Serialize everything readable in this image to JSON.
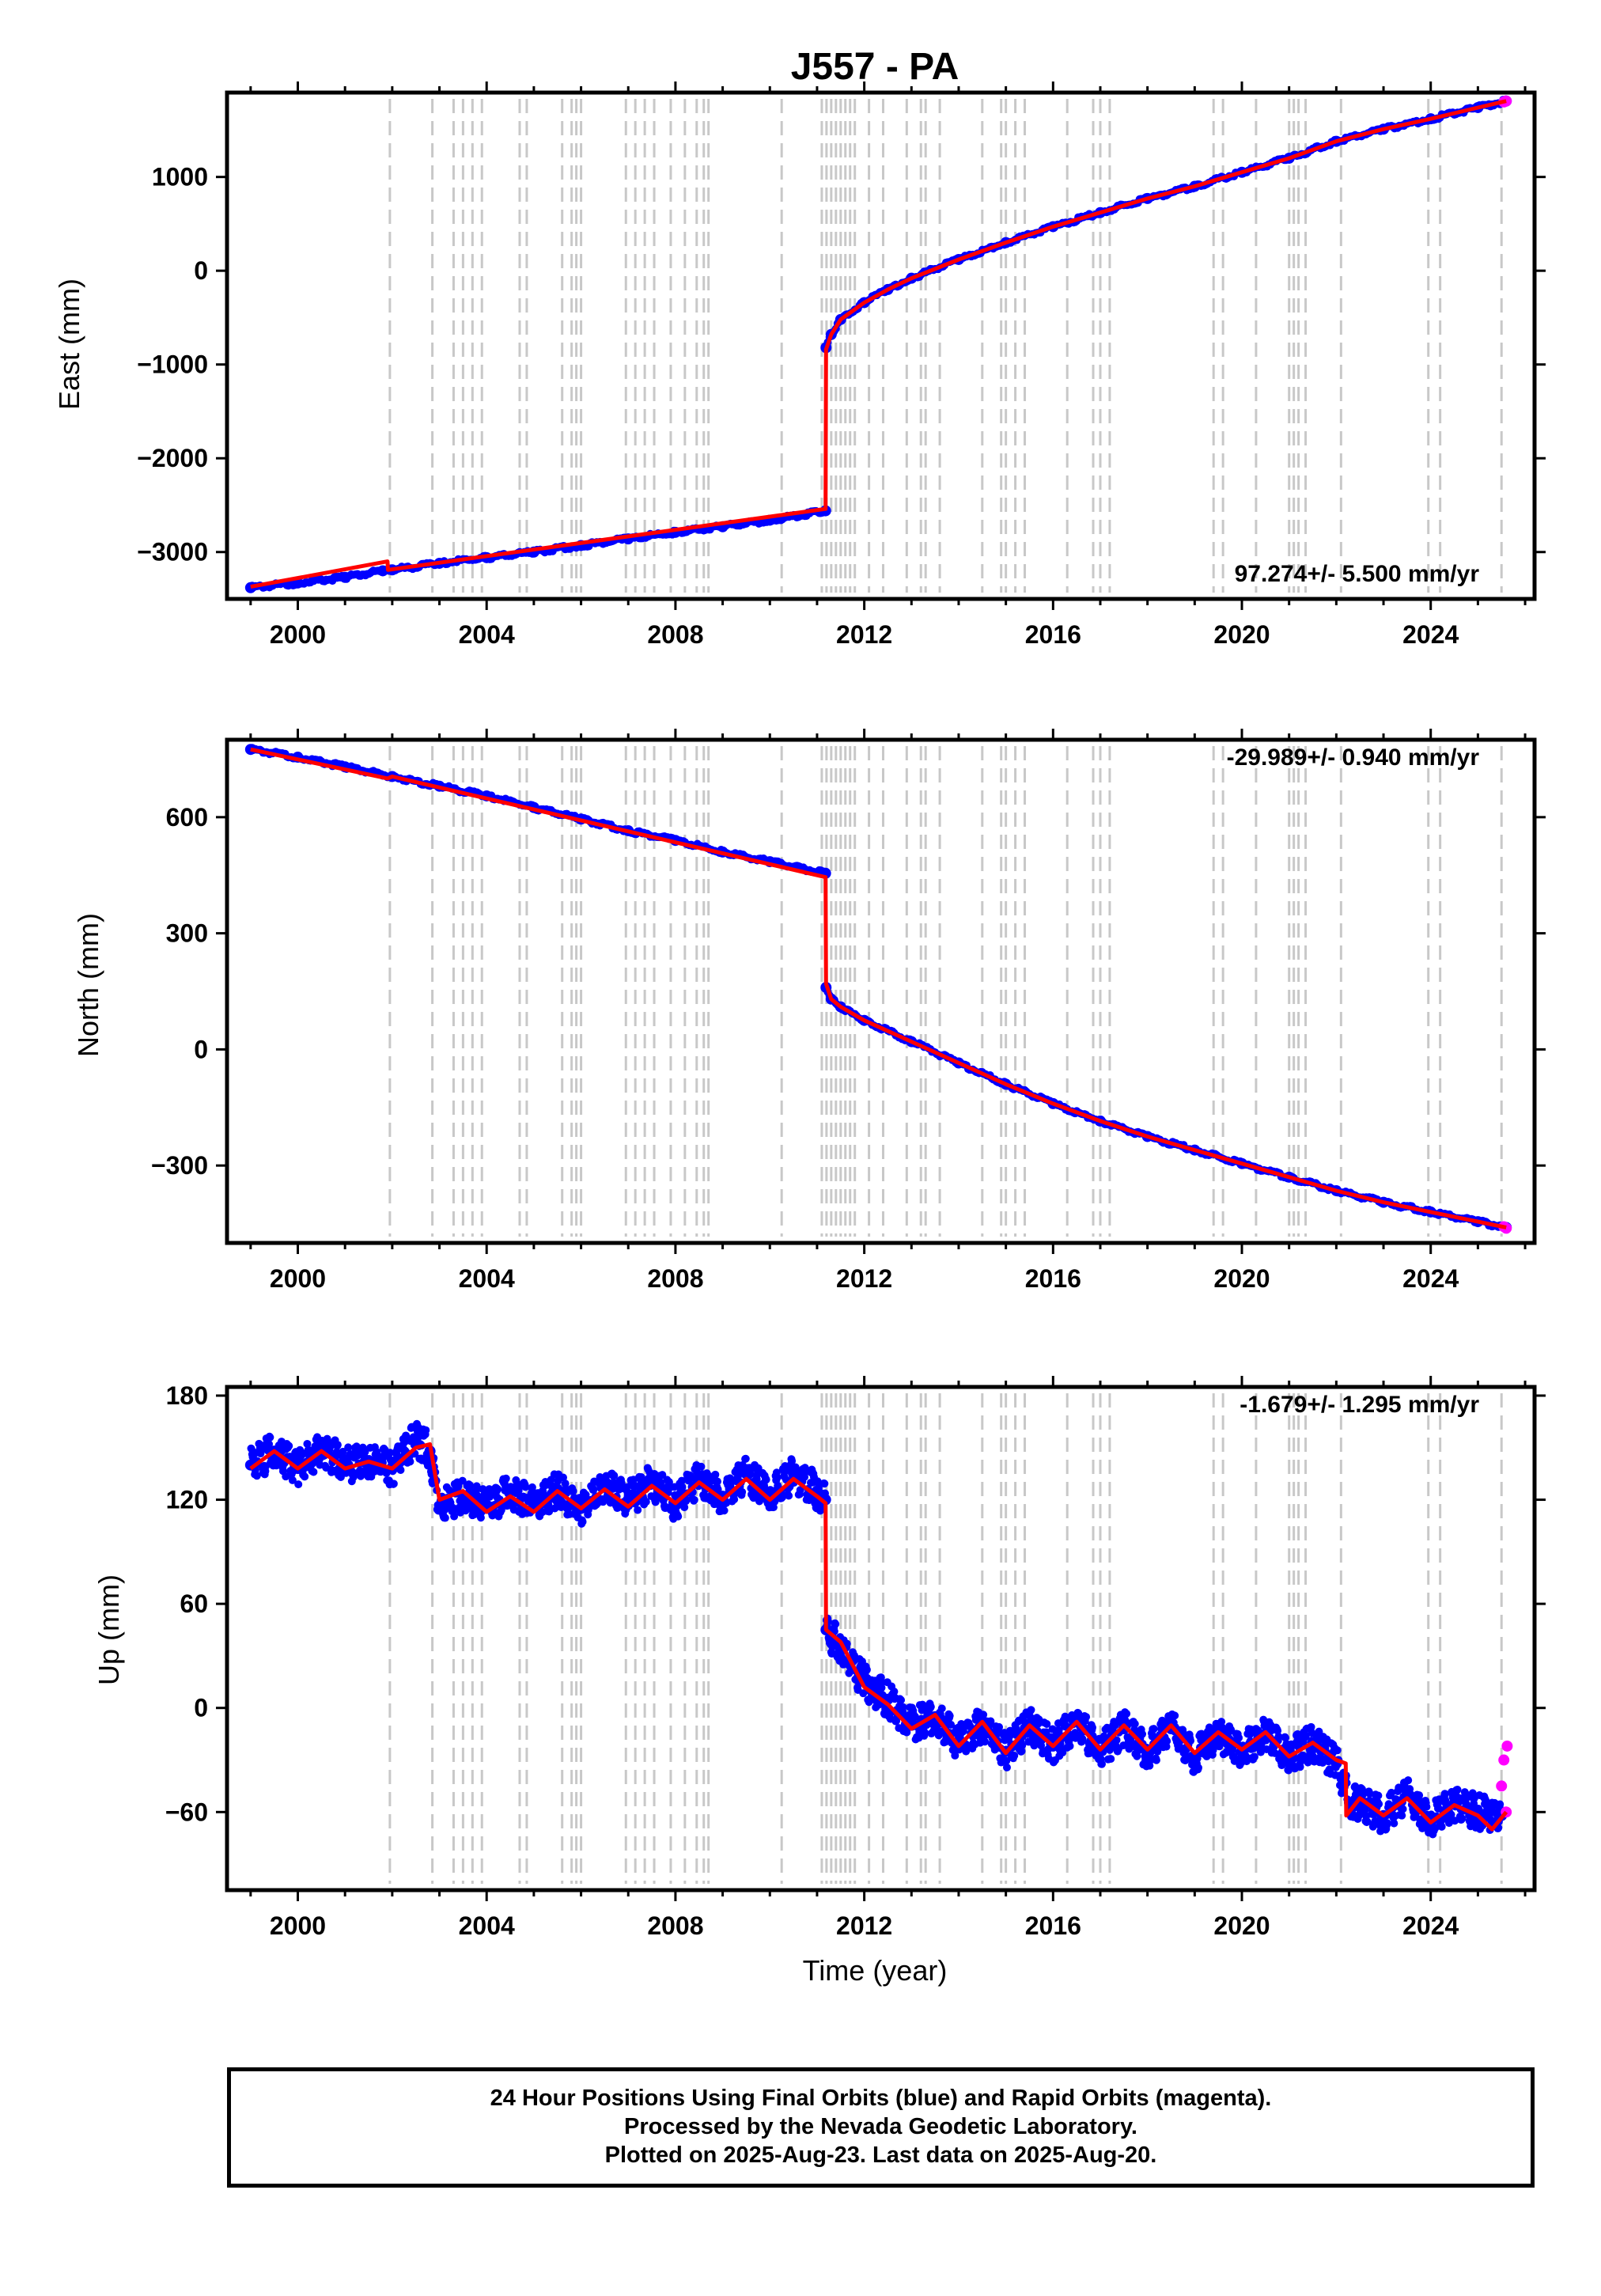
{
  "title": "J557 - PA",
  "xlabel": "Time (year)",
  "x_ticks": [
    "2000",
    "2004",
    "2008",
    "2012",
    "2016",
    "2020",
    "2024"
  ],
  "colors": {
    "final": "#0000ff",
    "rapid": "#ff00ff",
    "model": "#ff0000",
    "event": "#c8c8c8",
    "frame": "#000000"
  },
  "chart_data": [
    {
      "type": "scatter",
      "component": "East",
      "ylabel": "East (mm)",
      "xlim": [
        1998.5,
        2026.2
      ],
      "ylim": [
        -3500,
        1900
      ],
      "y_ticks": [
        -3000,
        -2000,
        -1000,
        0,
        1000
      ],
      "y_tick_labels": [
        "−3000",
        "−2000",
        "−1000",
        "0",
        "1000"
      ],
      "rate_label": "97.274+/- 5.500 mm/yr",
      "rate_position": "bottom-right",
      "series": [
        {
          "name": "Final Orbits (blue)",
          "x": [
            1999.0,
            2000.0,
            2001.0,
            2001.8,
            2002.0,
            2003.0,
            2004.0,
            2005.0,
            2006.0,
            2007.0,
            2008.0,
            2009.0,
            2010.0,
            2011.18,
            2011.19,
            2011.3,
            2011.5,
            2012.0,
            2012.5,
            2013.0,
            2014.0,
            2015.0,
            2016.0,
            2017.0,
            2018.0,
            2019.0,
            2020.0,
            2021.0,
            2022.0,
            2023.0,
            2024.0,
            2025.0,
            2025.6
          ],
          "y": [
            -3380,
            -3330,
            -3270,
            -3200,
            -3190,
            -3120,
            -3060,
            -3000,
            -2930,
            -2860,
            -2790,
            -2730,
            -2660,
            -2560,
            -820,
            -680,
            -520,
            -340,
            -200,
            -80,
            120,
            300,
            470,
            620,
            770,
            900,
            1050,
            1200,
            1380,
            1510,
            1620,
            1740,
            1810
          ]
        },
        {
          "name": "Rapid Orbits (magenta)",
          "x": [
            2025.55,
            2025.6
          ],
          "y": [
            1800,
            1810
          ]
        }
      ],
      "model": {
        "x": [
          1999.0,
          2001.9,
          2001.91,
          2011.18,
          2011.19,
          2011.3,
          2011.5,
          2012.0,
          2012.5,
          2013.0,
          2014.0,
          2015.0,
          2016.0,
          2017.0,
          2018.0,
          2019.0,
          2020.0,
          2021.0,
          2022.0,
          2023.0,
          2024.0,
          2025.0,
          2025.6
        ],
        "y": [
          -3370,
          -3100,
          -3190,
          -2540,
          -840,
          -680,
          -520,
          -340,
          -200,
          -80,
          120,
          300,
          470,
          620,
          770,
          900,
          1050,
          1200,
          1380,
          1510,
          1620,
          1740,
          1810
        ]
      }
    },
    {
      "type": "scatter",
      "component": "North",
      "ylabel": "North (mm)",
      "xlim": [
        1998.5,
        2026.2
      ],
      "ylim": [
        -500,
        800
      ],
      "y_ticks": [
        -300,
        0,
        300,
        600
      ],
      "y_tick_labels": [
        "−300",
        "0",
        "300",
        "600"
      ],
      "rate_label": "-29.989+/- 0.940 mm/yr",
      "rate_position": "top-right",
      "series": [
        {
          "name": "Final Orbits (blue)",
          "x": [
            1999.0,
            2000.0,
            2001.0,
            2002.0,
            2003.0,
            2004.0,
            2005.0,
            2006.0,
            2007.0,
            2008.0,
            2009.0,
            2010.0,
            2011.18,
            2011.19,
            2011.3,
            2011.5,
            2012.0,
            2013.0,
            2014.0,
            2015.0,
            2016.0,
            2017.0,
            2018.0,
            2019.0,
            2020.0,
            2021.0,
            2022.0,
            2023.0,
            2024.0,
            2025.0,
            2025.6
          ],
          "y": [
            775,
            755,
            730,
            705,
            680,
            655,
            625,
            595,
            565,
            540,
            510,
            485,
            455,
            160,
            130,
            110,
            75,
            20,
            -35,
            -90,
            -140,
            -185,
            -225,
            -260,
            -295,
            -330,
            -365,
            -395,
            -420,
            -445,
            -460
          ]
        },
        {
          "name": "Rapid Orbits (magenta)",
          "x": [
            2025.55,
            2025.6
          ],
          "y": [
            -458,
            -462
          ]
        }
      ],
      "model": {
        "x": [
          1999.0,
          2001.9,
          2002.0,
          2011.18,
          2011.19,
          2011.3,
          2011.5,
          2012.0,
          2013.0,
          2014.0,
          2015.0,
          2016.0,
          2017.0,
          2018.0,
          2019.0,
          2020.0,
          2021.0,
          2022.0,
          2023.0,
          2024.0,
          2025.0,
          2025.6
        ],
        "y": [
          775,
          700,
          705,
          445,
          170,
          130,
          110,
          75,
          20,
          -35,
          -90,
          -140,
          -185,
          -225,
          -260,
          -295,
          -330,
          -365,
          -395,
          -420,
          -445,
          -460
        ]
      }
    },
    {
      "type": "scatter",
      "component": "Up",
      "ylabel": "Up (mm)",
      "xlim": [
        1998.5,
        2026.2
      ],
      "ylim": [
        -105,
        185
      ],
      "y_ticks": [
        -60,
        0,
        60,
        120,
        180
      ],
      "y_tick_labels": [
        "−60",
        "0",
        "60",
        "120",
        "180"
      ],
      "rate_label": "-1.679+/- 1.295 mm/yr",
      "rate_position": "top-right",
      "series": [
        {
          "name": "Final Orbits (blue)",
          "x": [
            1999.0,
            1999.5,
            2000.0,
            2000.5,
            2001.0,
            2001.5,
            2002.0,
            2002.5,
            2002.8,
            2003.0,
            2003.5,
            2004.0,
            2004.5,
            2005.0,
            2005.5,
            2006.0,
            2006.5,
            2007.0,
            2007.5,
            2008.0,
            2008.5,
            2009.0,
            2009.5,
            2010.0,
            2010.5,
            2011.0,
            2011.18,
            2011.19,
            2011.5,
            2012.0,
            2012.5,
            2013.0,
            2013.5,
            2014.0,
            2014.5,
            2015.0,
            2015.5,
            2016.0,
            2016.5,
            2017.0,
            2017.5,
            2018.0,
            2018.5,
            2019.0,
            2019.5,
            2020.0,
            2020.5,
            2021.0,
            2021.5,
            2022.0,
            2022.3,
            2022.5,
            2023.0,
            2023.5,
            2024.0,
            2024.5,
            2025.0,
            2025.5
          ],
          "y": [
            140,
            148,
            138,
            150,
            140,
            142,
            138,
            155,
            148,
            115,
            122,
            115,
            125,
            118,
            126,
            115,
            128,
            120,
            130,
            118,
            132,
            122,
            135,
            122,
            135,
            125,
            120,
            45,
            35,
            15,
            5,
            -10,
            -5,
            -20,
            -10,
            -25,
            -10,
            -22,
            -8,
            -25,
            -12,
            -25,
            -12,
            -28,
            -15,
            -25,
            -15,
            -28,
            -20,
            -32,
            -55,
            -55,
            -62,
            -50,
            -65,
            -55,
            -60,
            -62
          ]
        },
        {
          "name": "Rapid Orbits (magenta)",
          "x": [
            2025.5,
            2025.55,
            2025.6,
            2025.62
          ],
          "y": [
            -45,
            -30,
            -60,
            -22
          ]
        }
      ],
      "model": {
        "x": [
          1999.0,
          1999.5,
          2000.0,
          2000.5,
          2001.0,
          2001.5,
          2002.0,
          2002.5,
          2002.8,
          2003.0,
          2003.5,
          2004.0,
          2004.5,
          2005.0,
          2005.5,
          2006.0,
          2006.5,
          2007.0,
          2007.5,
          2008.0,
          2008.5,
          2009.0,
          2009.5,
          2010.0,
          2010.5,
          2011.0,
          2011.18,
          2011.19,
          2011.5,
          2012.0,
          2012.5,
          2013.0,
          2013.5,
          2014.0,
          2014.5,
          2015.0,
          2015.5,
          2016.0,
          2016.5,
          2017.0,
          2017.5,
          2018.0,
          2018.5,
          2019.0,
          2019.5,
          2020.0,
          2020.5,
          2021.0,
          2021.5,
          2022.0,
          2022.2,
          2022.21,
          2022.5,
          2023.0,
          2023.5,
          2024.0,
          2024.5,
          2025.0,
          2025.3,
          2025.6
        ],
        "y": [
          138,
          148,
          138,
          148,
          138,
          142,
          138,
          150,
          152,
          120,
          125,
          113,
          122,
          113,
          125,
          115,
          126,
          116,
          128,
          118,
          130,
          120,
          132,
          120,
          132,
          122,
          118,
          45,
          38,
          12,
          2,
          -12,
          -4,
          -22,
          -8,
          -26,
          -10,
          -22,
          -8,
          -24,
          -10,
          -24,
          -10,
          -26,
          -14,
          -24,
          -14,
          -28,
          -20,
          -30,
          -32,
          -62,
          -52,
          -62,
          -52,
          -66,
          -56,
          -62,
          -70,
          -60
        ]
      }
    }
  ],
  "events": [
    2001.95,
    2002.85,
    2003.3,
    2003.5,
    2003.7,
    2003.9,
    2004.7,
    2004.85,
    2005.6,
    2005.8,
    2005.9,
    2006.0,
    2006.95,
    2007.15,
    2007.35,
    2007.55,
    2007.9,
    2008.2,
    2008.45,
    2008.6,
    2008.7,
    2010.25,
    2011.1,
    2011.2,
    2011.3,
    2011.4,
    2011.5,
    2011.6,
    2011.7,
    2011.8,
    2012.1,
    2012.4,
    2012.9,
    2013.2,
    2013.3,
    2013.6,
    2014.5,
    2014.9,
    2015.0,
    2015.2,
    2015.4,
    2016.3,
    2016.85,
    2017.0,
    2017.2,
    2019.4,
    2019.6,
    2020.3,
    2021.0,
    2021.1,
    2021.2,
    2021.35,
    2022.1,
    2023.95,
    2024.2,
    2025.5
  ],
  "footer": {
    "line1": "24 Hour Positions Using Final Orbits (blue) and Rapid Orbits (magenta).",
    "line2": "Processed by the Nevada Geodetic Laboratory.",
    "line3": "Plotted on 2025-Aug-23. Last data on 2025-Aug-20."
  }
}
